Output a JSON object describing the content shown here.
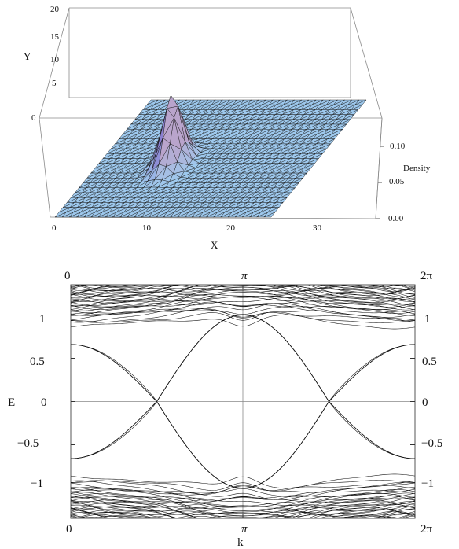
{
  "chart_data": [
    {
      "type": "surface3d",
      "title": "",
      "xlabel": "X",
      "ylabel": "Y",
      "zlabel": "Density",
      "x_ticks": [
        "0",
        "10",
        "20",
        "30"
      ],
      "y_ticks": [
        "0",
        "5",
        "10",
        "15",
        "20"
      ],
      "z_ticks": [
        "0.00",
        "0.05",
        "0.10"
      ],
      "xlim": [
        0,
        35
      ],
      "ylim": [
        0,
        20
      ],
      "zlim": [
        0,
        0.13
      ],
      "peak": {
        "x": 12,
        "y": 9,
        "density": 0.13,
        "width": 1.3
      },
      "baseline_density": 0.0,
      "colors": {
        "base": "#9ec9ee",
        "peak_low": "#8a7fd0",
        "peak_high": "#f2d2c8",
        "mesh": "#1a1a1a"
      }
    },
    {
      "type": "line",
      "title": "",
      "xlabel": "k",
      "ylabel": "E",
      "x_ticks": [
        "0",
        "π",
        "2π"
      ],
      "y_ticks": [
        "−1",
        "−0.5",
        "0",
        "0.5",
        "1"
      ],
      "y_ticks_right": [
        "−1",
        "−0.5",
        "0",
        "0.5",
        "1"
      ],
      "x_ticks_top": [
        "0",
        "π",
        "2π"
      ],
      "xlim": [
        0,
        6.2832
      ],
      "ylim": [
        -1.35,
        1.35
      ],
      "grid": false,
      "zero_lines": true,
      "edge_states": {
        "min_abs_energy": 0.66,
        "crossings_k": [
          1.5708,
          4.7124
        ],
        "touch_energy": 1.0,
        "touch_k": 3.1416
      },
      "bulk_bands": {
        "upper_range": [
          0.8,
          1.35
        ],
        "lower_range": [
          -1.35,
          -0.8
        ],
        "band_count": 46,
        "gap_edge_at_0": 0.86,
        "gap_edge_at_pi": 0.99
      },
      "colors": {
        "lines": "#111111"
      }
    }
  ]
}
